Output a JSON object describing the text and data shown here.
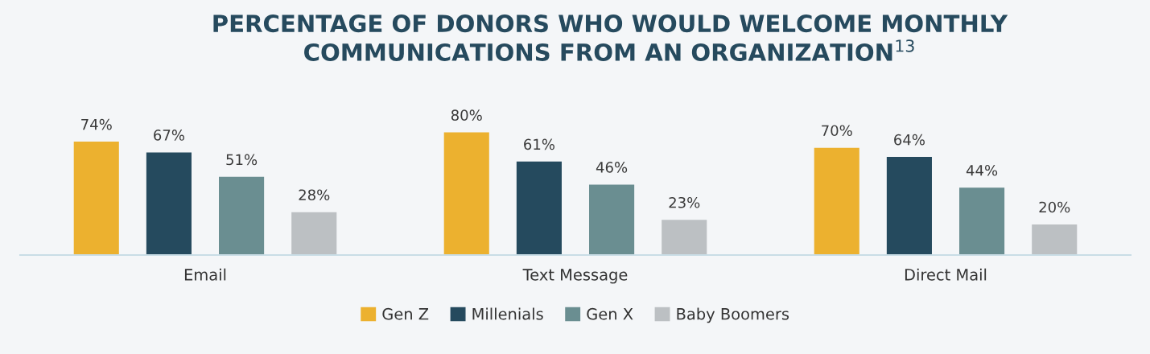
{
  "chart_data": {
    "type": "bar",
    "title": "PERCENTAGE OF DONORS WHO WOULD WELCOME MONTHLY\nCOMMUNICATIONS FROM AN ORGANIZATION$^{13}$",
    "categories": [
      "Email",
      "Text Message",
      "Direct Mail"
    ],
    "series": [
      {
        "name": "Gen Z",
        "color": "#ecb12f",
        "values": [
          74,
          80,
          70
        ],
        "value_labels": [
          "74%",
          "80%",
          "70%"
        ]
      },
      {
        "name": "Millenials",
        "color": "#254a5e",
        "values": [
          67,
          61,
          64
        ],
        "value_labels": [
          "67%",
          "61%",
          "64%"
        ]
      },
      {
        "name": "Gen X",
        "color": "#6a8e91",
        "values": [
          51,
          46,
          44
        ],
        "value_labels": [
          "51%",
          "46%",
          "44%"
        ]
      },
      {
        "name": "Baby Boomers",
        "color": "#bcc0c3",
        "values": [
          28,
          23,
          20
        ],
        "value_labels": [
          "28%",
          "23%",
          "20%"
        ]
      }
    ],
    "legend": "bottom",
    "grid": false,
    "tick_labels": "x"
  }
}
